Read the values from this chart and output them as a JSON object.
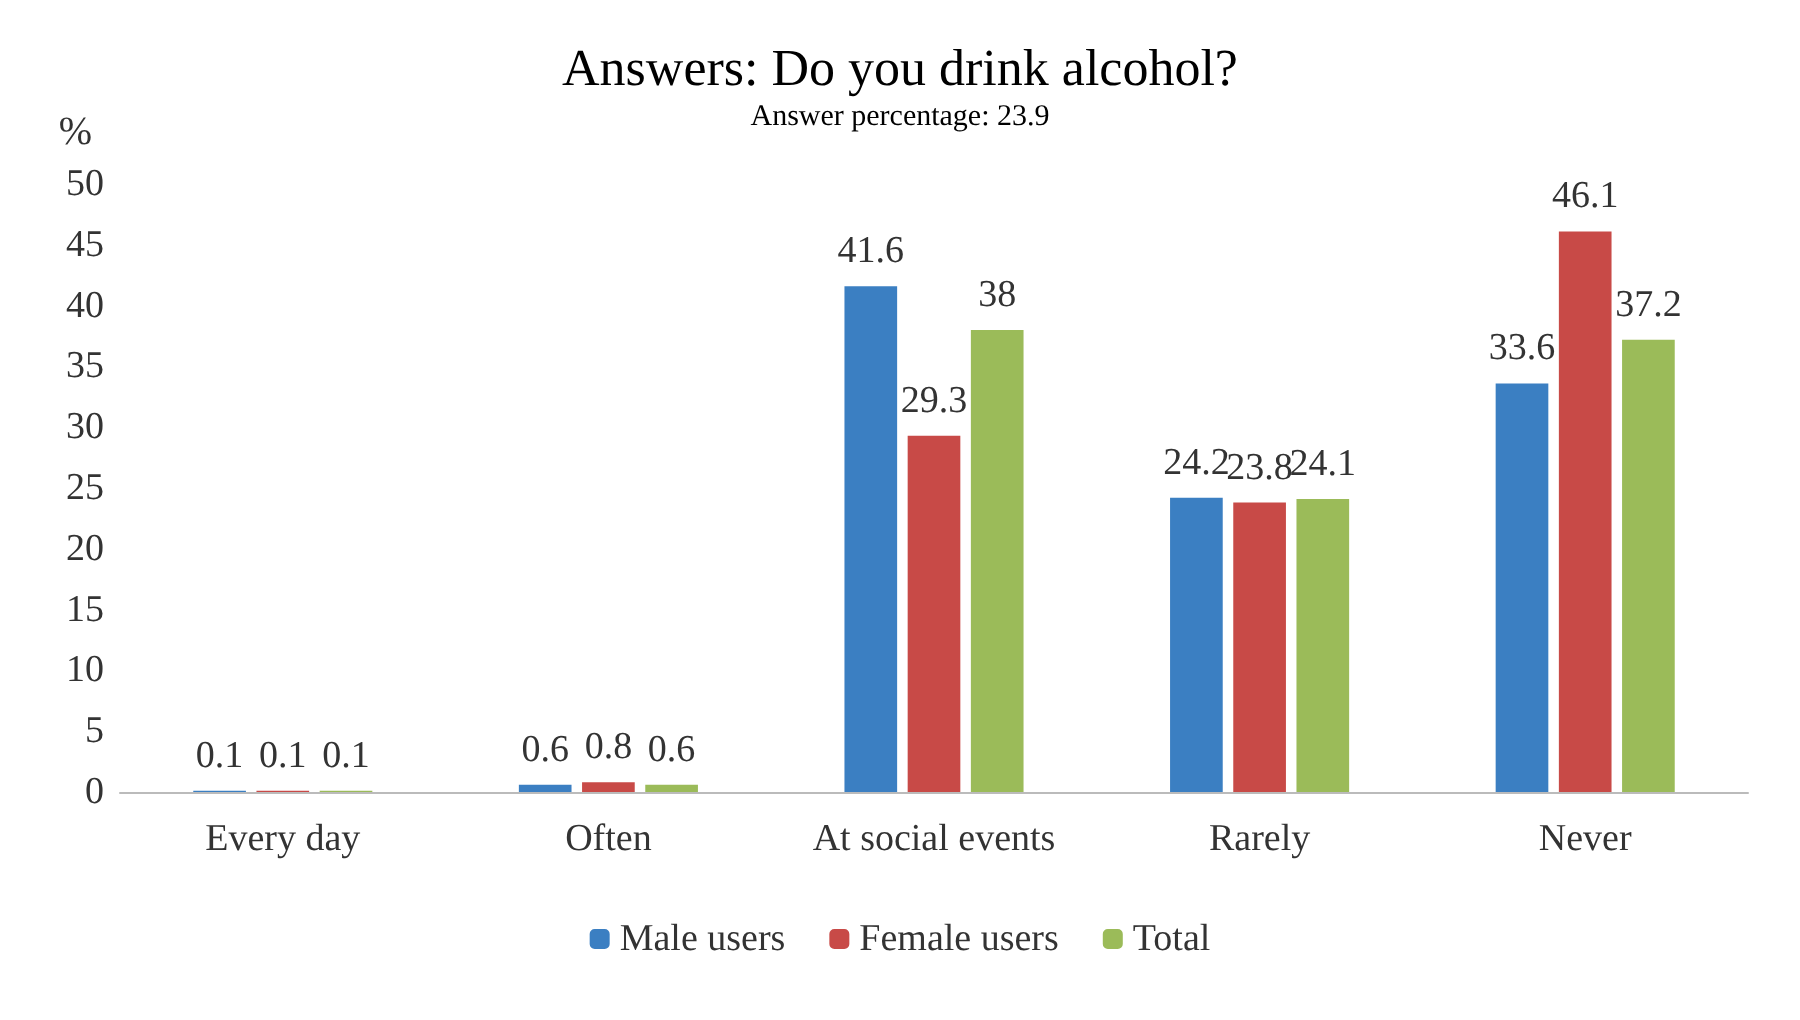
{
  "chart_data": {
    "type": "bar",
    "title": "Answers: Do you drink alcohol?",
    "subtitle": "Answer percentage: 23.9",
    "ylabel": "%",
    "categories": [
      "Every day",
      "Often",
      "At social events",
      "Rarely",
      "Never"
    ],
    "series": [
      {
        "name": "Male users",
        "color": "#3b7fc2",
        "values": [
          0.1,
          0.6,
          41.6,
          24.2,
          33.6
        ]
      },
      {
        "name": "Female users",
        "color": "#c84a47",
        "values": [
          0.1,
          0.8,
          29.3,
          23.8,
          46.1
        ]
      },
      {
        "name": "Total",
        "color": "#9bbb59",
        "values": [
          0.1,
          0.6,
          38,
          24.1,
          37.2
        ]
      }
    ],
    "ylim": [
      0,
      50
    ],
    "yticks": [
      0,
      5,
      10,
      15,
      20,
      25,
      30,
      35,
      40,
      45,
      50
    ],
    "grid": false,
    "legend": "bottom",
    "data_labels": true
  }
}
